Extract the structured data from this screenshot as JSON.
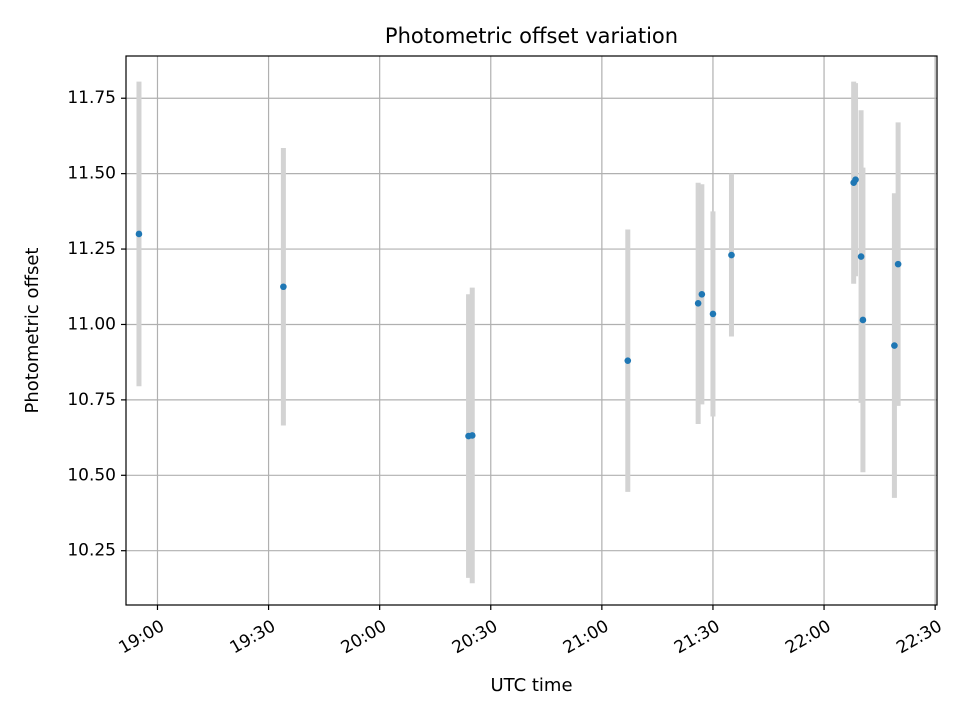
{
  "chart_data": {
    "type": "scatter",
    "title": "Photometric offset variation",
    "xlabel": "UTC time",
    "ylabel": "Photometric offset",
    "x_ticks": [
      "19:00",
      "19:30",
      "20:00",
      "20:30",
      "21:00",
      "21:30",
      "22:00",
      "22:30"
    ],
    "y_ticks": [
      "10.25",
      "10.50",
      "10.75",
      "11.00",
      "11.25",
      "11.50",
      "11.75"
    ],
    "xlim": [
      "18:51.5",
      "22:30.5"
    ],
    "ylim": [
      10.07,
      11.89
    ],
    "grid": true,
    "colors": {
      "point": "#1f77b4",
      "errorbar": "#d3d3d3",
      "grid": "#b0b0b0"
    },
    "points": [
      {
        "x": "18:55",
        "y": 11.3,
        "yerr": 0.505
      },
      {
        "x": "19:34",
        "y": 11.125,
        "yerr": 0.46
      },
      {
        "x": "20:24",
        "y": 10.63,
        "yerr": 0.47
      },
      {
        "x": "20:25",
        "y": 10.632,
        "yerr": 0.49
      },
      {
        "x": "21:07",
        "y": 10.88,
        "yerr": 0.435
      },
      {
        "x": "21:26",
        "y": 11.07,
        "yerr": 0.4
      },
      {
        "x": "21:27",
        "y": 11.1,
        "yerr": 0.365
      },
      {
        "x": "21:30",
        "y": 11.035,
        "yerr": 0.34
      },
      {
        "x": "21:35",
        "y": 11.23,
        "yerr": 0.27
      },
      {
        "x": "22:08",
        "y": 11.47,
        "yerr": 0.335
      },
      {
        "x": "22:08.5",
        "y": 11.48,
        "yerr": 0.32
      },
      {
        "x": "22:10",
        "y": 11.225,
        "yerr": 0.485
      },
      {
        "x": "22:10.5",
        "y": 11.015,
        "yerr": 0.505
      },
      {
        "x": "22:19",
        "y": 10.93,
        "yerr": 0.505
      },
      {
        "x": "22:20",
        "y": 11.2,
        "yerr": 0.47
      }
    ]
  }
}
